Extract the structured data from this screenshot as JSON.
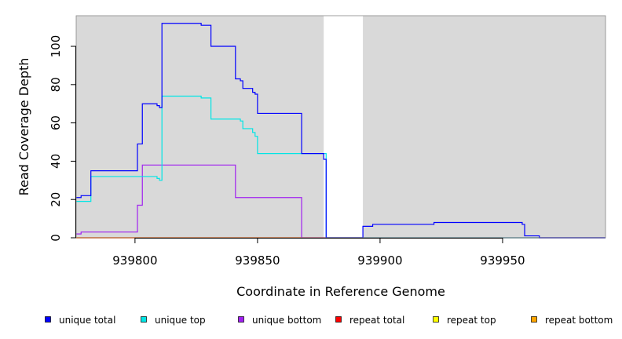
{
  "chart_data": {
    "type": "line",
    "title": "",
    "xlabel": "Coordinate in Reference Genome",
    "ylabel": "Read Coverage Depth",
    "xlim": [
      939776,
      939992
    ],
    "ylim": [
      0,
      116
    ],
    "x_ticks": [
      939800,
      939850,
      939900,
      939950
    ],
    "y_ticks": [
      0,
      20,
      40,
      60,
      80,
      100
    ],
    "grid": false,
    "legend_position": "bottom",
    "background_regions": [
      {
        "start": 939776,
        "end": 939877,
        "color": "#d9d9d9"
      },
      {
        "start": 939893,
        "end": 939992,
        "color": "#d9d9d9"
      }
    ],
    "series": [
      {
        "name": "unique total",
        "color": "#0000ff",
        "x": [
          939776,
          939778,
          939782,
          939801,
          939803,
          939805,
          939809,
          939810,
          939811,
          939827,
          939831,
          939841,
          939843,
          939844,
          939848,
          939849,
          939850,
          939868,
          939877,
          939878,
          939892,
          939893,
          939897,
          939922,
          939958,
          939959,
          939965,
          939992
        ],
        "y": [
          21,
          22,
          35,
          49,
          70,
          70,
          69,
          68,
          112,
          111,
          100,
          83,
          82,
          78,
          76,
          75,
          65,
          44,
          41,
          0,
          0,
          6,
          7,
          8,
          7,
          1,
          0,
          0
        ]
      },
      {
        "name": "unique top",
        "color": "#00e5e5",
        "x": [
          939776,
          939782,
          939809,
          939810,
          939811,
          939827,
          939831,
          939843,
          939844,
          939848,
          939849,
          939850,
          939868,
          939878,
          939992
        ],
        "y": [
          19,
          32,
          31,
          30,
          74,
          73,
          62,
          61,
          57,
          55,
          53,
          44,
          44,
          0,
          0
        ]
      },
      {
        "name": "unique bottom",
        "color": "#a020f0",
        "x": [
          939776,
          939778,
          939801,
          939803,
          939841,
          939868,
          939992
        ],
        "y": [
          2,
          3,
          17,
          38,
          21,
          0,
          0
        ]
      },
      {
        "name": "repeat total",
        "color": "#ff0000",
        "x": [
          939776,
          939992
        ],
        "y": [
          0,
          0
        ]
      },
      {
        "name": "repeat top",
        "color": "#ffff00",
        "x": [
          939776,
          939992
        ],
        "y": [
          0,
          0
        ]
      },
      {
        "name": "repeat bottom",
        "color": "#ffa500",
        "x": [
          939776,
          939877
        ],
        "y": [
          0,
          0
        ]
      }
    ]
  }
}
